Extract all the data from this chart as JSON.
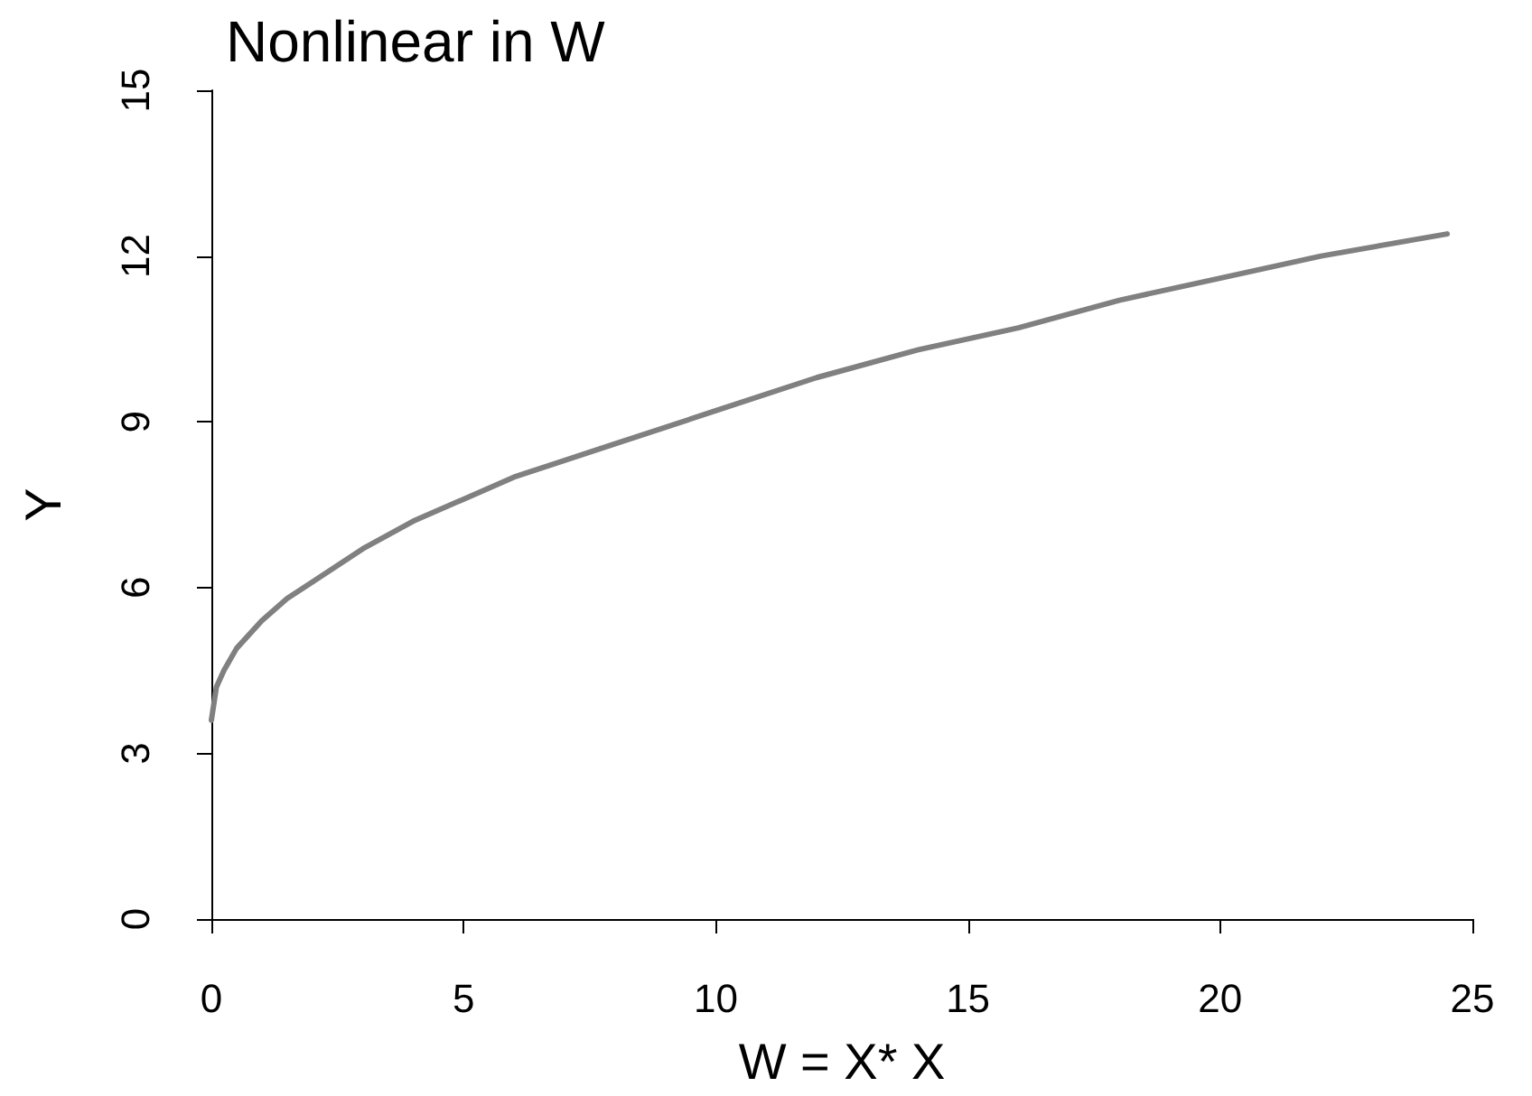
{
  "chart_data": {
    "type": "line",
    "title": "Nonlinear in W",
    "xlabel": "W = X* X",
    "ylabel": "Y",
    "series": [
      {
        "color": "#808080",
        "x": [
          0,
          0.1,
          0.25,
          0.5,
          1,
          1.5,
          2,
          3,
          4,
          5,
          6,
          8,
          10,
          12,
          14,
          16,
          18,
          20,
          22,
          24.5
        ],
        "values": [
          3.6,
          4.2,
          4.5,
          4.9,
          5.4,
          5.8,
          6.1,
          6.7,
          7.2,
          7.6,
          8.0,
          8.6,
          9.2,
          9.8,
          10.3,
          10.7,
          11.2,
          11.6,
          12.0,
          12.4
        ]
      }
    ],
    "xlim": [
      0,
      25
    ],
    "xticks": [
      0,
      5,
      10,
      15,
      20,
      25
    ],
    "ylim": [
      0,
      15
    ],
    "yticks": [
      0,
      3,
      6,
      9,
      12,
      15
    ],
    "grid": false,
    "marker": "none",
    "line_style": "solid"
  }
}
